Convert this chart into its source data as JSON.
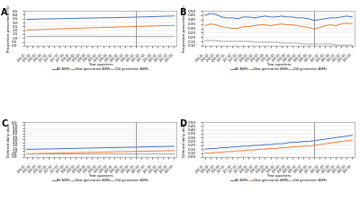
{
  "panels": [
    "A",
    "B",
    "C",
    "D"
  ],
  "n_points": 28,
  "x_labels": [
    "2016-Q1",
    "2016-Q2",
    "2016-Q3",
    "2016-Q4",
    "2017-Q1",
    "2017-Q2",
    "2017-Q3",
    "2017-Q4",
    "2018-Q1",
    "2018-Q2",
    "2018-Q3",
    "2018-Q4",
    "2019-Q1",
    "2019-Q2",
    "2019-Q3",
    "2019-Q4",
    "2020-Q1",
    "2020-Q2",
    "2020-Q3",
    "2020-Q4",
    "2021-Q1",
    "2021-Q2",
    "2021-Q3",
    "2021-Q4",
    "2022-Q1",
    "2022-Q2",
    "2022-Q3",
    "2022-Q4"
  ],
  "vline_index": 20,
  "colors": {
    "all": "#4472C4",
    "new": "#ED7D31",
    "old": "#A9A9A9"
  },
  "A": {
    "ylabel": "Proportion prescribed (%)",
    "ylim": [
      0,
      4.5
    ],
    "yticks": [
      0,
      0.5,
      1.0,
      1.5,
      2.0,
      2.5,
      3.0,
      3.5,
      4.0,
      4.5
    ],
    "all": [
      3.4,
      3.42,
      3.44,
      3.46,
      3.47,
      3.48,
      3.5,
      3.51,
      3.53,
      3.54,
      3.56,
      3.57,
      3.58,
      3.6,
      3.61,
      3.62,
      3.63,
      3.65,
      3.66,
      3.68,
      3.7,
      3.72,
      3.74,
      3.76,
      3.78,
      3.8,
      3.82,
      3.84
    ],
    "new": [
      2.02,
      2.05,
      2.08,
      2.11,
      2.14,
      2.16,
      2.19,
      2.21,
      2.23,
      2.25,
      2.27,
      2.29,
      2.32,
      2.34,
      2.36,
      2.38,
      2.4,
      2.42,
      2.44,
      2.46,
      2.49,
      2.51,
      2.53,
      2.55,
      2.57,
      2.59,
      2.61,
      2.63
    ],
    "old": [
      1.2,
      1.21,
      1.21,
      1.21,
      1.22,
      1.22,
      1.22,
      1.22,
      1.22,
      1.22,
      1.22,
      1.22,
      1.22,
      1.22,
      1.21,
      1.21,
      1.21,
      1.21,
      1.21,
      1.21,
      1.21,
      1.21,
      1.2,
      1.2,
      1.2,
      1.2,
      1.2,
      1.2
    ]
  },
  "B": {
    "ylabel": "Proportion prescribed (%)",
    "ylim": [
      0.1,
      0.5
    ],
    "yticks": [
      0.1,
      0.15,
      0.2,
      0.25,
      0.3,
      0.35,
      0.4,
      0.45,
      0.5
    ],
    "all": [
      0.45,
      0.47,
      0.46,
      0.43,
      0.42,
      0.42,
      0.41,
      0.43,
      0.43,
      0.42,
      0.43,
      0.44,
      0.43,
      0.43,
      0.44,
      0.43,
      0.43,
      0.42,
      0.42,
      0.41,
      0.39,
      0.4,
      0.41,
      0.42,
      0.42,
      0.43,
      0.44,
      0.43
    ],
    "new": [
      0.33,
      0.35,
      0.34,
      0.32,
      0.31,
      0.3,
      0.3,
      0.32,
      0.32,
      0.33,
      0.34,
      0.34,
      0.33,
      0.34,
      0.35,
      0.34,
      0.34,
      0.33,
      0.32,
      0.31,
      0.29,
      0.31,
      0.33,
      0.34,
      0.33,
      0.35,
      0.36,
      0.35
    ],
    "old": [
      0.16,
      0.16,
      0.16,
      0.15,
      0.15,
      0.15,
      0.15,
      0.15,
      0.15,
      0.14,
      0.14,
      0.14,
      0.14,
      0.14,
      0.13,
      0.13,
      0.13,
      0.13,
      0.12,
      0.12,
      0.12,
      0.12,
      0.12,
      0.12,
      0.11,
      0.11,
      0.11,
      0.11
    ]
  },
  "C": {
    "ylabel": "Defined daily dose",
    "ylim": [
      0,
      6.0
    ],
    "yticks": [
      0,
      0.5,
      1.0,
      1.5,
      2.0,
      2.5,
      3.0,
      3.5,
      4.0,
      4.5,
      5.0,
      5.5,
      6.0
    ],
    "all": [
      1.3,
      1.32,
      1.34,
      1.36,
      1.38,
      1.4,
      1.42,
      1.44,
      1.46,
      1.48,
      1.5,
      1.52,
      1.54,
      1.56,
      1.58,
      1.6,
      1.62,
      1.64,
      1.66,
      1.68,
      1.7,
      1.72,
      1.74,
      1.76,
      1.78,
      1.8,
      1.82,
      1.84
    ],
    "new": [
      0.55,
      0.57,
      0.59,
      0.61,
      0.63,
      0.65,
      0.67,
      0.69,
      0.71,
      0.73,
      0.75,
      0.77,
      0.79,
      0.81,
      0.83,
      0.85,
      0.87,
      0.89,
      0.91,
      0.93,
      0.95,
      0.97,
      0.99,
      1.01,
      1.03,
      1.05,
      1.07,
      1.09
    ],
    "old": [
      0.55,
      0.55,
      0.55,
      0.55,
      0.55,
      0.55,
      0.55,
      0.55,
      0.55,
      0.55,
      0.55,
      0.55,
      0.55,
      0.55,
      0.55,
      0.55,
      0.55,
      0.55,
      0.55,
      0.55,
      0.55,
      0.55,
      0.55,
      0.55,
      0.55,
      0.55,
      0.55,
      0.55
    ]
  },
  "D": {
    "ylabel": "Defined daily dose",
    "ylim": [
      0.05,
      0.5
    ],
    "yticks": [
      0.05,
      0.1,
      0.15,
      0.2,
      0.25,
      0.3,
      0.35,
      0.4,
      0.45,
      0.5
    ],
    "all": [
      0.15,
      0.16,
      0.16,
      0.17,
      0.17,
      0.18,
      0.18,
      0.19,
      0.19,
      0.2,
      0.2,
      0.21,
      0.21,
      0.22,
      0.22,
      0.23,
      0.24,
      0.24,
      0.25,
      0.25,
      0.26,
      0.27,
      0.28,
      0.29,
      0.3,
      0.31,
      0.32,
      0.33
    ],
    "new": [
      0.1,
      0.1,
      0.11,
      0.11,
      0.12,
      0.12,
      0.13,
      0.13,
      0.14,
      0.14,
      0.15,
      0.15,
      0.16,
      0.16,
      0.17,
      0.17,
      0.18,
      0.18,
      0.19,
      0.19,
      0.2,
      0.21,
      0.22,
      0.23,
      0.24,
      0.25,
      0.26,
      0.27
    ],
    "old": [
      0.05,
      0.05,
      0.05,
      0.05,
      0.05,
      0.05,
      0.05,
      0.05,
      0.05,
      0.05,
      0.05,
      0.05,
      0.05,
      0.05,
      0.05,
      0.05,
      0.05,
      0.05,
      0.05,
      0.05,
      0.05,
      0.05,
      0.05,
      0.05,
      0.05,
      0.05,
      0.05,
      0.05
    ]
  },
  "legend_labels": [
    "All ASMs",
    "New generation ASMs",
    "Old generation ASMs"
  ],
  "xlabel": "Year quarters"
}
